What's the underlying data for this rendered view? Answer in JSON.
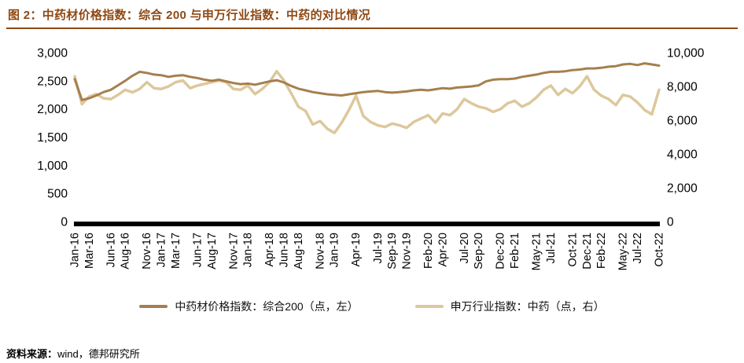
{
  "header": {
    "title": "图 2：中药材价格指数：综合 200 与申万行业指数：中药的对比情况",
    "accent_color": "#8F4812"
  },
  "footer": {
    "label": "资料来源：",
    "value": "wind，德邦研究所"
  },
  "chart_data": {
    "type": "line",
    "title": "中药材价格指数：综合200 与申万行业指数：中药的对比情况",
    "grid": false,
    "legend_position": "bottom",
    "x_frequency": "monthly",
    "x_range": [
      "Jan-16",
      "Oct-22"
    ],
    "x_tick_labels": [
      "Jan-16",
      "Mar-16",
      "Jun-16",
      "Aug-16",
      "Nov-16",
      "Jan-17",
      "Mar-17",
      "Jun-17",
      "Aug-17",
      "Nov-17",
      "Jan-18",
      "Apr-18",
      "Jun-18",
      "Aug-18",
      "Nov-18",
      "Jan-19",
      "Apr-19",
      "Jul-19",
      "Sep-19",
      "Nov-19",
      "Feb-20",
      "Apr-20",
      "Jul-20",
      "Sep-20",
      "Dec-20",
      "Feb-21",
      "May-21",
      "Jul-21",
      "Oct-21",
      "Dec-21",
      "Feb-22",
      "May-22",
      "Jul-22",
      "Oct-22"
    ],
    "x_tick_month_index": [
      0,
      2,
      5,
      7,
      10,
      12,
      14,
      17,
      19,
      22,
      24,
      27,
      29,
      31,
      34,
      36,
      39,
      42,
      44,
      46,
      49,
      51,
      54,
      56,
      59,
      61,
      64,
      66,
      69,
      71,
      73,
      76,
      78,
      81
    ],
    "left_axis": {
      "min": 0,
      "max": 3000,
      "ticks": [
        "3,000",
        "2,500",
        "2,000",
        "1,500",
        "1,000",
        "500",
        "0"
      ]
    },
    "right_axis": {
      "min": 0,
      "max": 10000,
      "ticks": [
        "10,000",
        "8,000",
        "6,000",
        "4,000",
        "2,000",
        "0"
      ]
    },
    "baseline_color": "#000000",
    "series": [
      {
        "id": "composite200",
        "name": "中药材价格指数：综合200（点，左）",
        "axis": "left",
        "color": "#A67F4E",
        "width": 3,
        "values": [
          2530,
          2160,
          2190,
          2240,
          2300,
          2340,
          2420,
          2500,
          2590,
          2660,
          2640,
          2610,
          2600,
          2570,
          2590,
          2600,
          2570,
          2550,
          2520,
          2500,
          2520,
          2490,
          2460,
          2440,
          2450,
          2430,
          2460,
          2490,
          2510,
          2470,
          2410,
          2360,
          2330,
          2300,
          2280,
          2260,
          2250,
          2240,
          2260,
          2280,
          2300,
          2310,
          2320,
          2300,
          2290,
          2300,
          2310,
          2330,
          2340,
          2330,
          2350,
          2370,
          2360,
          2380,
          2390,
          2400,
          2420,
          2490,
          2520,
          2530,
          2530,
          2540,
          2570,
          2590,
          2610,
          2640,
          2660,
          2660,
          2670,
          2690,
          2700,
          2720,
          2720,
          2730,
          2750,
          2760,
          2790,
          2800,
          2780,
          2810,
          2790,
          2770
        ]
      },
      {
        "id": "sw-tcm",
        "name": "申万行业指数：中药（点，右）",
        "axis": "right",
        "color": "#DCC89C",
        "width": 3.5,
        "values": [
          8600,
          6950,
          7400,
          7550,
          7300,
          7250,
          7500,
          7800,
          7650,
          7850,
          8250,
          7900,
          7850,
          8000,
          8250,
          8350,
          7900,
          8050,
          8150,
          8250,
          8350,
          8250,
          7850,
          7800,
          8050,
          7550,
          7850,
          8250,
          8900,
          8350,
          7600,
          6800,
          6550,
          5750,
          5950,
          5500,
          5250,
          5850,
          6600,
          7450,
          6250,
          5900,
          5700,
          5600,
          5800,
          5700,
          5550,
          5900,
          6100,
          6300,
          5850,
          6400,
          6300,
          6650,
          7250,
          7000,
          6800,
          6700,
          6500,
          6650,
          7000,
          7150,
          6800,
          7000,
          7350,
          7800,
          8050,
          7500,
          7850,
          7600,
          8000,
          8600,
          7800,
          7450,
          7250,
          6900,
          7500,
          7400,
          7050,
          6600,
          6350,
          7800
        ]
      }
    ]
  }
}
